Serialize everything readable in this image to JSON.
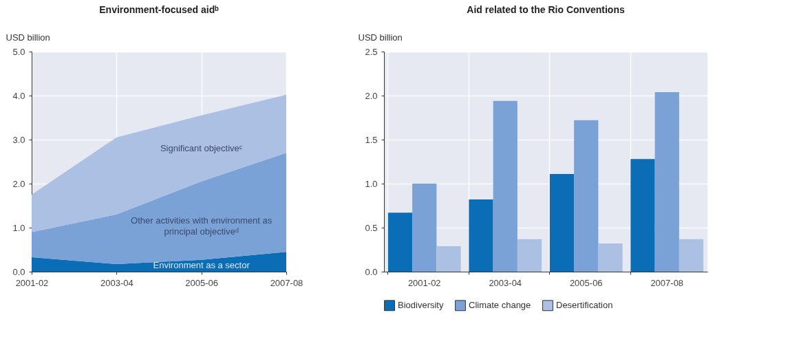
{
  "chart_data": [
    {
      "type": "area",
      "title": "Environment-focused aidᵇ",
      "ylabel": "USD billion",
      "categories": [
        "2001-02",
        "2003-04",
        "2005-06",
        "2007-08"
      ],
      "stacked": true,
      "series": [
        {
          "name": "Environment as a sector",
          "color": "#0b6db6",
          "values": [
            0.33,
            0.17,
            0.27,
            0.45
          ]
        },
        {
          "name": "Other activities with environment as principal objectiveᵈ",
          "color": "#7aa2d6",
          "values": [
            0.57,
            1.13,
            1.78,
            2.25
          ]
        },
        {
          "name": "Significant objectiveᶜ",
          "color": "#abc0e2",
          "values": [
            0.85,
            1.75,
            1.5,
            1.32
          ]
        }
      ],
      "ylim": [
        0,
        5
      ],
      "yticks": [
        {
          "value": 0,
          "label": "0.0"
        },
        {
          "value": 1,
          "label": "1.0"
        },
        {
          "value": 2,
          "label": "2.0"
        },
        {
          "value": 3,
          "label": "3.0"
        },
        {
          "value": 4,
          "label": "4.0"
        },
        {
          "value": 5,
          "label": "5.0"
        }
      ],
      "grid": true,
      "legend": false
    },
    {
      "type": "bar",
      "title": "Aid related to the Rio Conventions",
      "ylabel": "USD billion",
      "categories": [
        "2001-02",
        "2003-04",
        "2005-06",
        "2007-08"
      ],
      "series": [
        {
          "name": "Biodiversity",
          "color": "#0b6db6",
          "values": [
            0.67,
            0.82,
            1.11,
            1.28
          ]
        },
        {
          "name": "Climate change",
          "color": "#7aa2d6",
          "values": [
            1.0,
            1.94,
            1.72,
            2.04
          ]
        },
        {
          "name": "Desertification",
          "color": "#abc0e2",
          "values": [
            0.29,
            0.37,
            0.32,
            0.37
          ]
        }
      ],
      "ylim": [
        0,
        2.5
      ],
      "yticks": [
        {
          "value": 0,
          "label": "0.0"
        },
        {
          "value": 0.5,
          "label": "0.5"
        },
        {
          "value": 1,
          "label": "1.0"
        },
        {
          "value": 1.5,
          "label": "1.5"
        },
        {
          "value": 2,
          "label": "2.0"
        },
        {
          "value": 2.5,
          "label": "2.5"
        }
      ],
      "grid": true,
      "legend": "bottom"
    }
  ]
}
